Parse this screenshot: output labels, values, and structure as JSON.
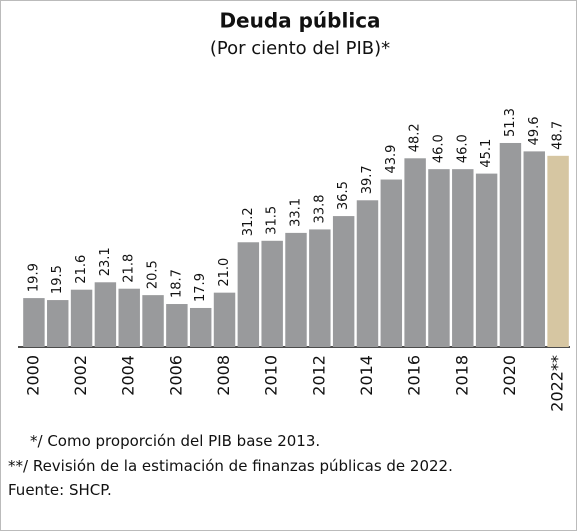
{
  "chart_data": {
    "type": "bar",
    "title": "Deuda pública",
    "subtitle": "(Por ciento del PIB)*",
    "categories": [
      "2000",
      null,
      "2002",
      null,
      "2004",
      null,
      "2006",
      null,
      "2008",
      null,
      "2010",
      null,
      "2012",
      null,
      "2014",
      null,
      "2016",
      null,
      "2018",
      null,
      "2020",
      null,
      "2022**"
    ],
    "values": [
      19.9,
      19.5,
      21.6,
      23.1,
      21.8,
      20.5,
      18.7,
      17.9,
      21.0,
      31.2,
      31.5,
      33.1,
      33.8,
      36.5,
      39.7,
      43.9,
      48.2,
      46.0,
      46.0,
      45.1,
      51.3,
      49.6,
      48.7
    ],
    "value_labels": [
      "19.9",
      "19.5",
      "21.6",
      "23.1",
      "21.8",
      "20.5",
      "18.7",
      "17.9",
      "21.0",
      "31.2",
      "31.5",
      "33.1",
      "33.8",
      "36.5",
      "39.7",
      "43.9",
      "48.2",
      "46.0",
      "46.0",
      "45.1",
      "51.3",
      "49.6",
      "48.7"
    ],
    "colors": [
      "#999a9c",
      "#999a9c",
      "#999a9c",
      "#999a9c",
      "#999a9c",
      "#999a9c",
      "#999a9c",
      "#999a9c",
      "#999a9c",
      "#999a9c",
      "#999a9c",
      "#999a9c",
      "#999a9c",
      "#999a9c",
      "#999a9c",
      "#999a9c",
      "#999a9c",
      "#999a9c",
      "#999a9c",
      "#999a9c",
      "#999a9c",
      "#999a9c",
      "#d6c6a2"
    ],
    "ylim": [
      10,
      60
    ],
    "notes": [
      "*/ Como proporción del PIB base 2013.",
      "**/ Revisión de la estimación de finanzas públicas de 2022.",
      "Fuente: SHCP."
    ]
  }
}
